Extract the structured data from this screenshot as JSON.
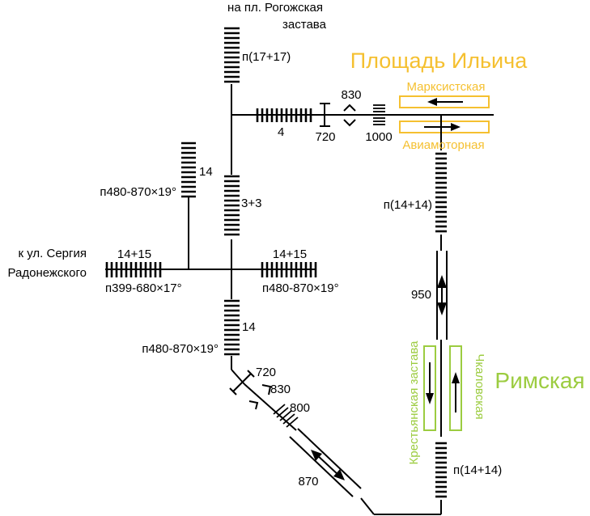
{
  "colors": {
    "ilyicha": "#f5c030",
    "rimskaya": "#9ccc40",
    "track": "#000000"
  },
  "stations": {
    "ilyicha": {
      "name": "Площадь Ильича",
      "platform_top": "Марксистская",
      "platform_bottom": "Авиамоторная"
    },
    "rimskaya": {
      "name": "Римская",
      "platform_left": "Крестьянская застава",
      "platform_right": "Чкаловская"
    }
  },
  "labels": {
    "to_rogozhskaya_1": "на пл. Рогожская",
    "to_rogozhskaya_2": "застава",
    "p_17_17": "п(17+17)",
    "four": "4",
    "v830_top": "830",
    "v720_top": "720",
    "v1000": "1000",
    "p_14_14_top": "п(14+14)",
    "fourteen_upper": "14",
    "p480_upper": "п480-870×19°",
    "three_three": "3+3",
    "to_sergiya_1": "к ул. Сергия",
    "to_sergiya_2": "Радонежского",
    "left_14_15": "14+15",
    "p399": "п399-680×17°",
    "right_14_15": "14+15",
    "p480_right": "п480-870×19°",
    "v950": "950",
    "fourteen_lower": "14",
    "p480_lower": "п480-870×19°",
    "v720_low": "720",
    "v830_low": "830",
    "v800": "800",
    "v870": "870",
    "p_14_14_bottom": "п(14+14)"
  }
}
